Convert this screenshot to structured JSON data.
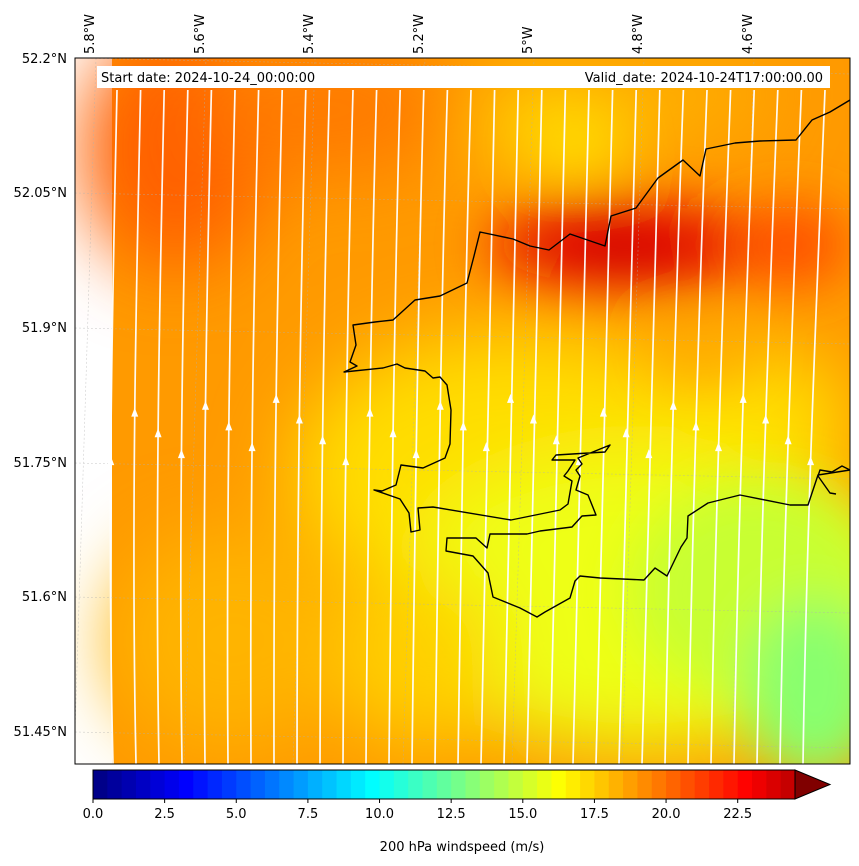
{
  "map": {
    "start_label": "Start date: 2024-10-24_00:00:00",
    "valid_label": "Valid_date: 2024-10-24T17:00:00.00",
    "lon_labels": [
      "5.8°W",
      "5.6°W",
      "5.4°W",
      "5.2°W",
      "5°W",
      "4.8°W",
      "4.6°W"
    ],
    "lat_labels": [
      "52.2°N",
      "52.05°N",
      "51.9°N",
      "51.75°N",
      "51.6°N",
      "51.45°N"
    ],
    "colors": {
      "coastline": "#000000",
      "streamline": "#ffffff",
      "base_field": "#ff9a00"
    }
  },
  "colorbar": {
    "label": "200 hPa windspeed (m/s)",
    "ticks": [
      "0.0",
      "2.5",
      "5.0",
      "7.5",
      "10.0",
      "12.5",
      "15.0",
      "17.5",
      "20.0",
      "22.5"
    ],
    "tick_values": [
      0,
      2.5,
      5,
      7.5,
      10,
      12.5,
      15,
      17.5,
      20,
      22.5
    ],
    "range": [
      0,
      24.5
    ],
    "colormap": "jet",
    "extend": "max"
  }
}
